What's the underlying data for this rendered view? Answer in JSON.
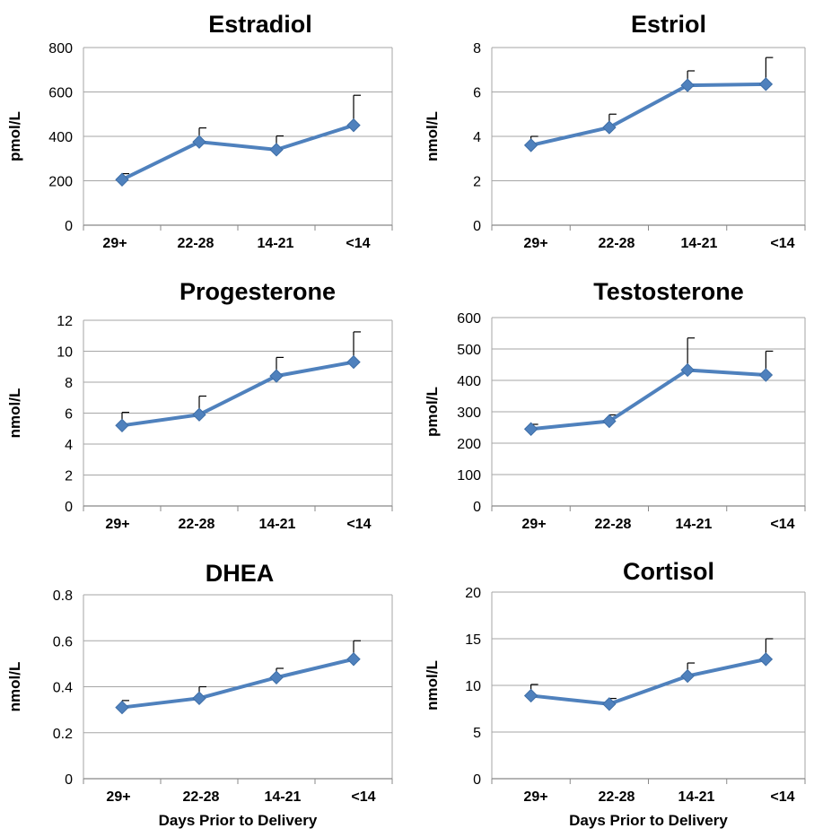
{
  "colors": {
    "series": "#4F81BD",
    "grid": "#a6a6a6",
    "error_bar": "#000000"
  },
  "chart_data": [
    {
      "type": "line",
      "title": "Estradiol",
      "xlabel": "",
      "ylabel": "pmol/L",
      "categories": [
        "29+",
        "22-28",
        "14-21",
        "<14"
      ],
      "ylim": [
        0,
        800
      ],
      "yticks": [
        "0",
        "200",
        "400",
        "600",
        "800"
      ],
      "values": [
        205,
        375,
        340,
        450
      ],
      "error_upper": [
        232,
        438,
        402,
        585
      ],
      "grid": true,
      "legend": "none"
    },
    {
      "type": "line",
      "title": "Estriol",
      "xlabel": "",
      "ylabel": "nmol/L",
      "categories": [
        "29+",
        "22-28",
        "14-21",
        "<14"
      ],
      "ylim": [
        0,
        8
      ],
      "yticks": [
        "0",
        "2",
        "4",
        "6",
        "8"
      ],
      "values": [
        3.6,
        4.4,
        6.3,
        6.35
      ],
      "error_upper": [
        4.0,
        5.0,
        6.95,
        7.55
      ],
      "grid": true,
      "legend": "none"
    },
    {
      "type": "line",
      "title": "Progesterone",
      "xlabel": "",
      "ylabel": "nmol/L",
      "categories": [
        "29+",
        "22-28",
        "14-21",
        "<14"
      ],
      "ylim": [
        0,
        12
      ],
      "yticks": [
        "0",
        "2",
        "4",
        "6",
        "8",
        "10",
        "12"
      ],
      "values": [
        5.2,
        5.9,
        8.4,
        9.3
      ],
      "error_upper": [
        6.05,
        7.1,
        9.6,
        11.25
      ],
      "grid": true,
      "legend": "none"
    },
    {
      "type": "line",
      "title": "Testosterone",
      "xlabel": "",
      "ylabel": "pmol/L",
      "categories": [
        "29+",
        "22-28",
        "14-21",
        "<14"
      ],
      "ylim": [
        0,
        600
      ],
      "yticks": [
        "0",
        "100",
        "200",
        "300",
        "400",
        "500",
        "600"
      ],
      "values": [
        245,
        270,
        433,
        417
      ],
      "error_upper": [
        260,
        290,
        535,
        493
      ],
      "grid": true,
      "legend": "none"
    },
    {
      "type": "line",
      "title": "DHEA",
      "xlabel": "Days Prior to Delivery",
      "ylabel": "nmol/L",
      "categories": [
        "29+",
        "22-28",
        "14-21",
        "<14"
      ],
      "ylim": [
        0,
        0.8
      ],
      "yticks": [
        "0",
        "0.2",
        "0.4",
        "0.6",
        "0.8"
      ],
      "values": [
        0.31,
        0.35,
        0.44,
        0.52
      ],
      "error_upper": [
        0.34,
        0.4,
        0.48,
        0.6
      ],
      "grid": true,
      "legend": "none"
    },
    {
      "type": "line",
      "title": "Cortisol",
      "xlabel": "Days Prior to Delivery",
      "ylabel": "nmol/L",
      "categories": [
        "29+",
        "22-28",
        "14-21",
        "<14"
      ],
      "ylim": [
        0,
        20
      ],
      "yticks": [
        "0",
        "5",
        "10",
        "15",
        "20"
      ],
      "values": [
        8.9,
        8.0,
        11.0,
        12.8
      ],
      "error_upper": [
        10.1,
        8.6,
        12.4,
        15.0
      ],
      "grid": true,
      "legend": "none"
    }
  ]
}
